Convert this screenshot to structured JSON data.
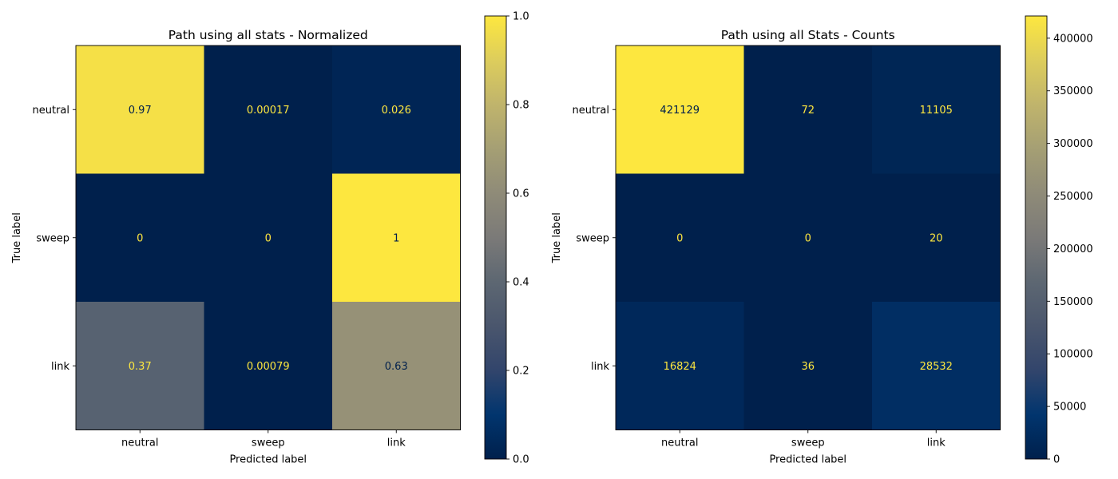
{
  "chart_data": [
    {
      "type": "heatmap",
      "title": "Path using all stats - Normalized",
      "xlabel": "Predicted label",
      "ylabel": "True label",
      "x_categories": [
        "neutral",
        "sweep",
        "link"
      ],
      "y_categories": [
        "neutral",
        "sweep",
        "link"
      ],
      "values": [
        [
          0.974,
          0.00017,
          0.026
        ],
        [
          0,
          0,
          1
        ],
        [
          0.37,
          0.00079,
          0.63
        ]
      ],
      "cell_labels": [
        [
          "0.97",
          "0.00017",
          "0.026"
        ],
        [
          "0",
          "0",
          "1"
        ],
        [
          "0.37",
          "0.00079",
          "0.63"
        ]
      ],
      "colormap": "cividis",
      "colorbar": {
        "min": 0,
        "max": 1,
        "ticks": [
          0.0,
          0.2,
          0.4,
          0.6,
          0.8,
          1.0
        ],
        "tick_labels": [
          "0.0",
          "0.2",
          "0.4",
          "0.6",
          "0.8",
          "1.0"
        ]
      }
    },
    {
      "type": "heatmap",
      "title": "Path using all Stats - Counts",
      "xlabel": "Predicted label",
      "ylabel": "True label",
      "x_categories": [
        "neutral",
        "sweep",
        "link"
      ],
      "y_categories": [
        "neutral",
        "sweep",
        "link"
      ],
      "values": [
        [
          421129,
          72,
          11105
        ],
        [
          0,
          0,
          20
        ],
        [
          16824,
          36,
          28532
        ]
      ],
      "cell_labels": [
        [
          "421129",
          "72",
          "11105"
        ],
        [
          "0",
          "0",
          "20"
        ],
        [
          "16824",
          "36",
          "28532"
        ]
      ],
      "colormap": "cividis",
      "colorbar": {
        "min": 0,
        "max": 421129,
        "ticks": [
          0,
          50000,
          100000,
          150000,
          200000,
          250000,
          300000,
          350000,
          400000
        ],
        "tick_labels": [
          "0",
          "50000",
          "100000",
          "150000",
          "200000",
          "250000",
          "300000",
          "350000",
          "400000"
        ]
      }
    }
  ]
}
